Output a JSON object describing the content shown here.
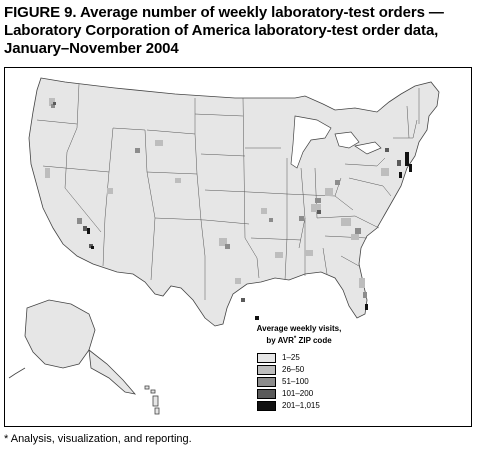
{
  "figure": {
    "title_line1": "FIGURE 9. Average number of weekly laboratory-test orders —",
    "title_line2": "Laboratory Corporation of America laboratory-test order data,",
    "title_line3": "January–November 2004"
  },
  "legend": {
    "title_line1": "Average weekly visits,",
    "title_line2_prefix": "by AVR",
    "title_line2_sup": "*",
    "title_line2_suffix": " ZIP code",
    "items": [
      {
        "label": "1–25",
        "color": "#e6e6e6"
      },
      {
        "label": "26–50",
        "color": "#bdbdbd"
      },
      {
        "label": "51–100",
        "color": "#8c8c8c"
      },
      {
        "label": "101–200",
        "color": "#5a5a5a"
      },
      {
        "label": "201–1,015",
        "color": "#111111"
      }
    ]
  },
  "footnote": {
    "text": "* Analysis, visualization, and reporting."
  },
  "map": {
    "base_color": "#e6e6e6",
    "border_color": "#444444"
  }
}
